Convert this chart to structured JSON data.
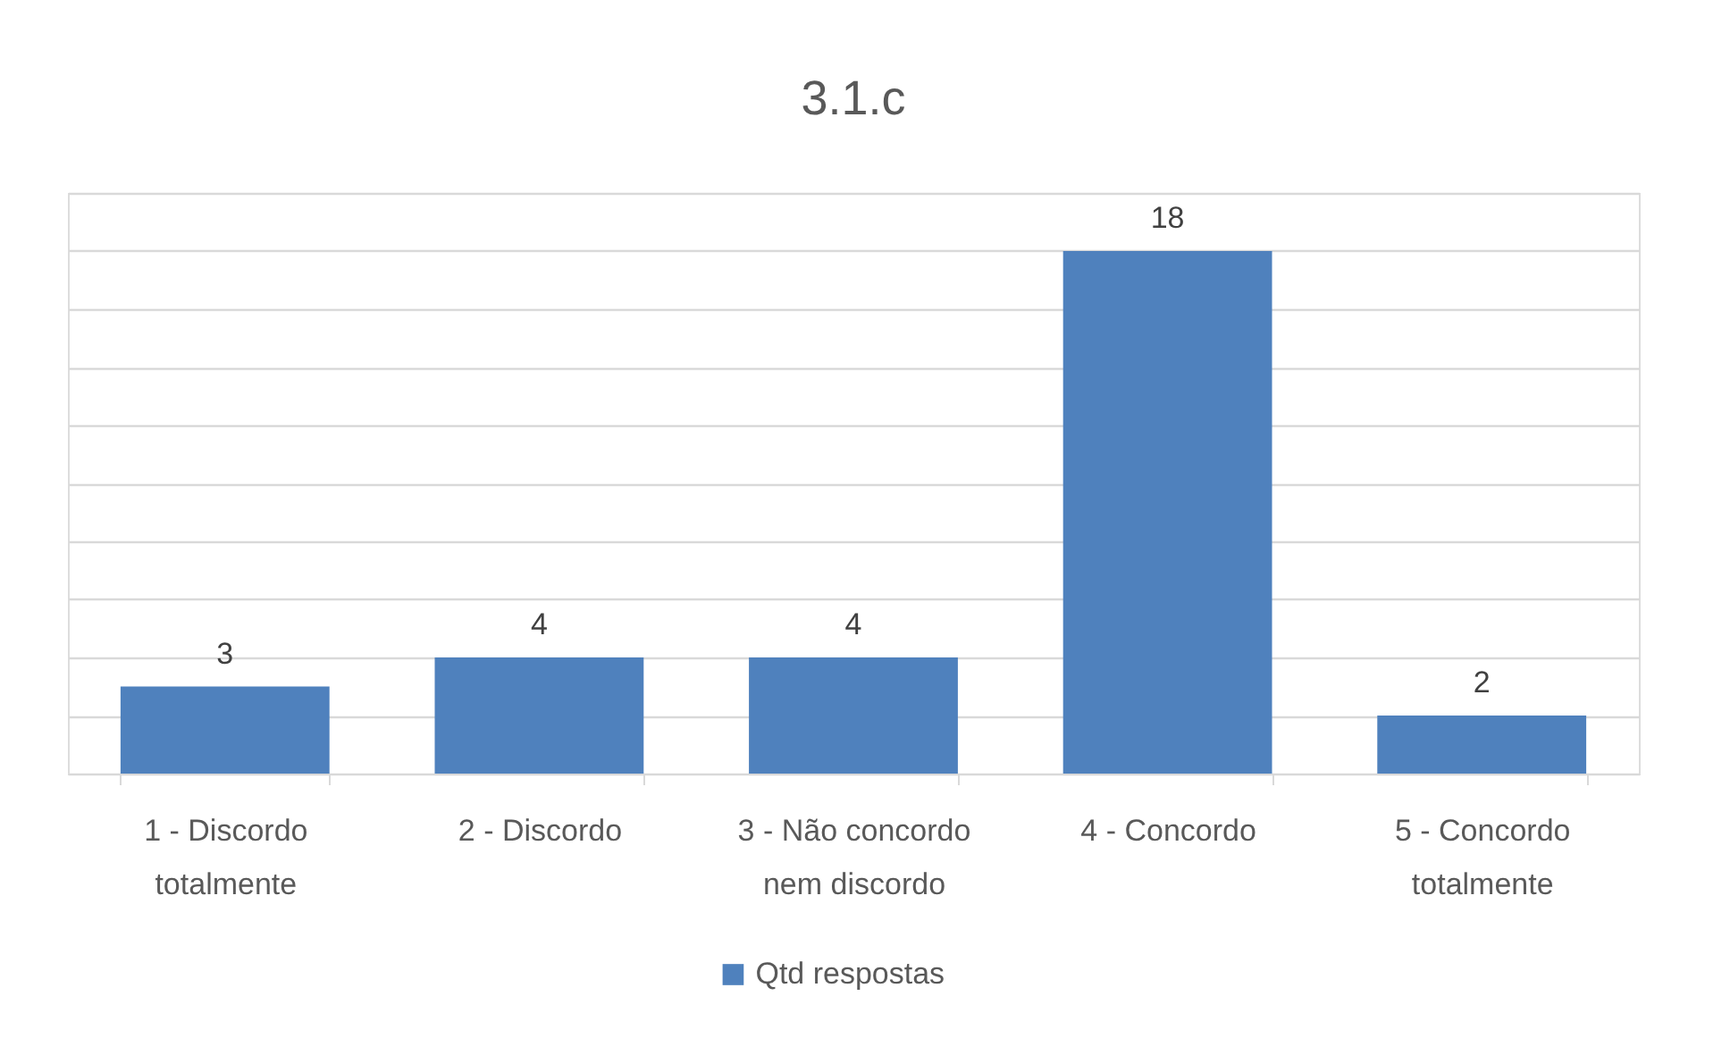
{
  "chart_data": {
    "type": "bar",
    "title": "3.1.c",
    "categories": [
      "1 - Discordo totalmente",
      "2 - Discordo",
      "3 - Não concordo nem discordo",
      "4 - Concordo",
      "5 - Concordo totalmente"
    ],
    "series": [
      {
        "name": "Qtd respostas",
        "color": "#4f81bd",
        "values": [
          3,
          4,
          4,
          18,
          2
        ]
      }
    ],
    "ylim": [
      0,
      20
    ],
    "yticks": [
      {
        "value": 0,
        "label": null
      },
      {
        "value": 2,
        "label": null
      },
      {
        "value": 4,
        "label": null
      },
      {
        "value": 6,
        "label": null
      },
      {
        "value": 8,
        "label": null
      },
      {
        "value": 10,
        "label": null
      },
      {
        "value": 12,
        "label": null
      },
      {
        "value": 14,
        "label": null
      },
      {
        "value": 16,
        "label": null
      },
      {
        "value": 18,
        "label": null
      },
      {
        "value": 20,
        "label": null
      }
    ],
    "tick_labels": "x",
    "grid": "y",
    "legend": "bottom",
    "data_labels": true
  }
}
